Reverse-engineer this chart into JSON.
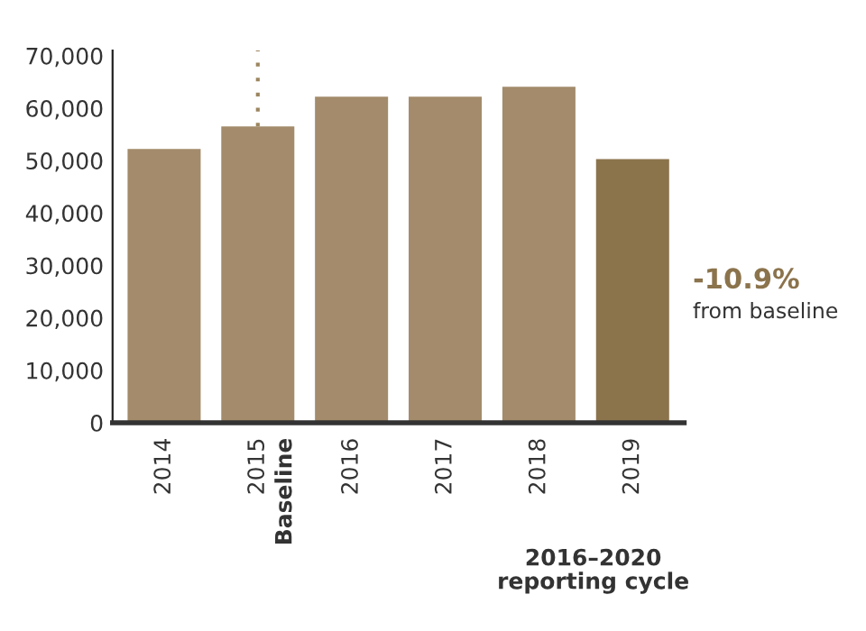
{
  "chart_data": {
    "type": "bar",
    "categories": [
      "2014",
      "2015",
      "2016",
      "2017",
      "2018",
      "2019"
    ],
    "values": [
      52200,
      56500,
      62200,
      62200,
      64100,
      50300
    ],
    "colors": [
      "#a38b6b",
      "#a38b6b",
      "#a38b6b",
      "#a38b6b",
      "#a38b6b",
      "#8b734c"
    ],
    "ylim": [
      0,
      71000
    ],
    "yticks": [
      {
        "value": 0,
        "label": "0"
      },
      {
        "value": 10000,
        "label": "10,000"
      },
      {
        "value": 20000,
        "label": "20,000"
      },
      {
        "value": 30000,
        "label": "30,000"
      },
      {
        "value": 40000,
        "label": "40,000"
      },
      {
        "value": 50000,
        "label": "50,000"
      },
      {
        "value": 60000,
        "label": "60,000"
      },
      {
        "value": 70000,
        "label": "70,000"
      }
    ],
    "grid": false,
    "ref_lines": [
      {
        "axis": "x",
        "value": "2015",
        "color": "#9c8660",
        "line_style": "dotted"
      }
    ],
    "annotations": [
      "Baseline",
      "-10.9%",
      "from baseline",
      "2016–2020\nreporting cycle"
    ]
  }
}
